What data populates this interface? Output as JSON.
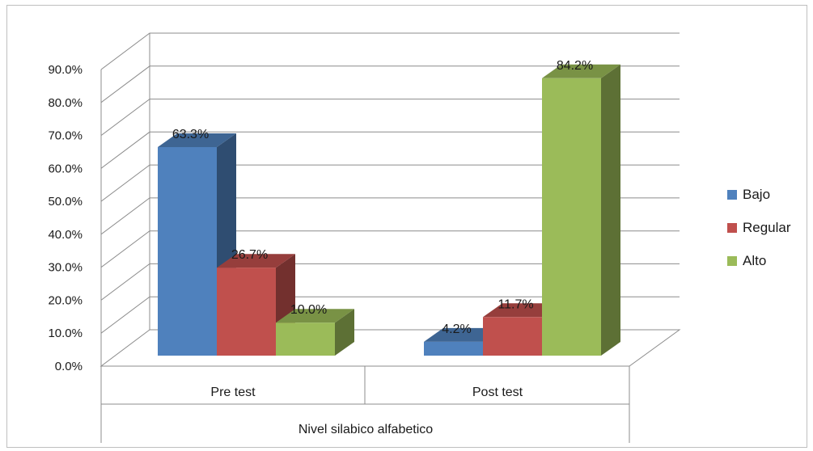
{
  "chart_data": {
    "type": "bar",
    "categories": [
      "Pre test",
      "Post test"
    ],
    "group_label": "Nivel silabico alfabetico",
    "series": [
      {
        "name": "Bajo",
        "color": "#4f81bd",
        "values": [
          63.3,
          4.2
        ]
      },
      {
        "name": "Regular",
        "color": "#c0504d",
        "values": [
          26.7,
          11.7
        ]
      },
      {
        "name": "Alto",
        "color": "#9bbb59",
        "values": [
          10.0,
          84.2
        ]
      }
    ],
    "data_labels": [
      [
        "63.3%",
        "4.2%"
      ],
      [
        "26.7%",
        "11.7%"
      ],
      [
        "10.0%",
        "84.2%"
      ]
    ],
    "y_ticks": [
      "0.0%",
      "10.0%",
      "20.0%",
      "30.0%",
      "40.0%",
      "50.0%",
      "60.0%",
      "70.0%",
      "80.0%",
      "90.0%"
    ],
    "ylim": [
      0,
      90
    ],
    "grid": true,
    "legend_position": "right",
    "style": "3d-clustered-column"
  }
}
